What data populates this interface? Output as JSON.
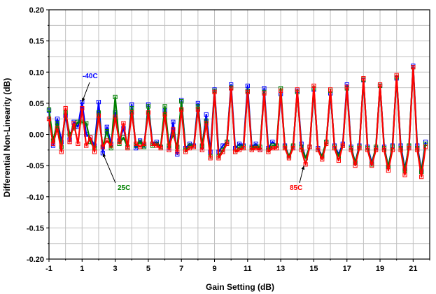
{
  "chart_data": {
    "type": "line",
    "title": "",
    "xlabel": "Gain Setting (dB)",
    "ylabel": "Differential Non-Linearity (dB)",
    "xlim": [
      -1,
      22
    ],
    "ylim": [
      -0.2,
      0.2
    ],
    "x_ticks": [
      "-1",
      "1",
      "3",
      "5",
      "7",
      "9",
      "11",
      "13",
      "15",
      "17",
      "19",
      "21"
    ],
    "y_ticks": [
      "-0.20",
      "-0.15",
      "-0.10",
      "-0.05",
      "0.00",
      "0.05",
      "0.10",
      "0.15",
      "0.20"
    ],
    "grid": true,
    "colors": {
      "-40C": "#0000ff",
      "25C": "#008000",
      "85C": "#ff0000"
    },
    "annotations": [
      {
        "text": "-40C",
        "color": "#0000ff"
      },
      {
        "text": "25C",
        "color": "#008000"
      },
      {
        "text": "85C",
        "color": "#ff0000"
      }
    ],
    "x": [
      -1,
      -0.75,
      -0.5,
      -0.25,
      0,
      0.25,
      0.5,
      0.75,
      1,
      1.25,
      1.5,
      1.75,
      2,
      2.25,
      2.5,
      2.75,
      3,
      3.25,
      3.5,
      3.75,
      4,
      4.25,
      4.5,
      4.75,
      5,
      5.25,
      5.5,
      5.75,
      6,
      6.25,
      6.5,
      6.75,
      7,
      7.25,
      7.5,
      7.75,
      8,
      8.25,
      8.5,
      8.75,
      9,
      9.25,
      9.5,
      9.75,
      10,
      10.25,
      10.5,
      10.75,
      11,
      11.25,
      11.5,
      11.75,
      12,
      12.25,
      12.5,
      12.75,
      13,
      13.25,
      13.5,
      13.75,
      14,
      14.25,
      14.5,
      14.75,
      15,
      15.25,
      15.5,
      15.75,
      16,
      16.25,
      16.5,
      16.75,
      17,
      17.25,
      17.5,
      17.75,
      18,
      18.25,
      18.5,
      18.75,
      19,
      19.25,
      19.5,
      19.75,
      20,
      20.25,
      20.5,
      20.75,
      21,
      21.25,
      21.5,
      21.75
    ],
    "series": [
      {
        "name": "-40C",
        "values": [
          0.038,
          -0.018,
          0.025,
          -0.012,
          0.03,
          -0.008,
          0.02,
          0.012,
          0.052,
          0.0,
          -0.005,
          -0.018,
          0.052,
          -0.03,
          0.012,
          -0.015,
          0.035,
          -0.01,
          0.01,
          -0.02,
          0.048,
          -0.022,
          -0.01,
          -0.018,
          0.048,
          -0.015,
          -0.012,
          -0.02,
          0.038,
          -0.022,
          0.02,
          -0.032,
          0.055,
          -0.022,
          -0.015,
          -0.018,
          0.05,
          -0.02,
          0.032,
          -0.028,
          0.072,
          -0.028,
          -0.018,
          -0.012,
          0.08,
          -0.022,
          -0.015,
          -0.018,
          0.078,
          -0.02,
          -0.015,
          -0.025,
          0.074,
          -0.022,
          -0.012,
          -0.018,
          0.065,
          -0.018,
          -0.035,
          -0.02,
          0.07,
          -0.015,
          -0.038,
          -0.02,
          0.072,
          -0.022,
          -0.035,
          -0.012,
          0.066,
          -0.018,
          -0.032,
          -0.015,
          0.08,
          -0.02,
          -0.045,
          -0.018,
          0.087,
          -0.02,
          -0.045,
          -0.022,
          0.078,
          -0.02,
          -0.052,
          -0.018,
          0.09,
          -0.018,
          -0.055,
          -0.02,
          0.11,
          -0.018,
          -0.058,
          -0.012
        ]
      },
      {
        "name": "25C",
        "values": [
          0.04,
          -0.01,
          0.018,
          -0.02,
          0.035,
          0.0,
          0.01,
          0.02,
          0.02,
          0.018,
          -0.012,
          -0.022,
          0.035,
          -0.02,
          0.005,
          -0.022,
          0.06,
          -0.015,
          -0.005,
          -0.02,
          0.042,
          -0.018,
          -0.012,
          -0.02,
          0.045,
          -0.018,
          -0.015,
          -0.02,
          0.045,
          -0.018,
          0.0,
          -0.02,
          0.053,
          -0.025,
          -0.018,
          -0.02,
          0.045,
          -0.018,
          0.022,
          -0.035,
          0.07,
          -0.035,
          -0.025,
          -0.012,
          0.075,
          -0.028,
          -0.02,
          -0.02,
          0.07,
          -0.022,
          -0.02,
          -0.02,
          0.068,
          -0.025,
          -0.018,
          -0.018,
          0.074,
          -0.02,
          -0.035,
          -0.018,
          0.068,
          -0.02,
          -0.038,
          -0.02,
          0.074,
          -0.025,
          -0.035,
          -0.012,
          0.07,
          -0.02,
          -0.035,
          -0.018,
          0.074,
          -0.022,
          -0.045,
          -0.02,
          0.088,
          -0.022,
          -0.048,
          -0.02,
          0.078,
          -0.022,
          -0.052,
          -0.02,
          0.092,
          -0.022,
          -0.058,
          -0.018,
          0.108,
          -0.022,
          -0.06,
          -0.015
        ]
      },
      {
        "name": "85C",
        "values": [
          0.025,
          -0.015,
          0.01,
          -0.028,
          0.042,
          -0.012,
          0.018,
          -0.015,
          0.042,
          -0.018,
          -0.005,
          -0.028,
          0.03,
          -0.02,
          -0.01,
          -0.018,
          0.028,
          -0.012,
          0.018,
          -0.022,
          0.035,
          -0.015,
          -0.02,
          -0.015,
          0.035,
          -0.015,
          -0.018,
          -0.022,
          0.032,
          -0.025,
          0.008,
          -0.028,
          0.04,
          -0.028,
          -0.022,
          -0.02,
          0.04,
          -0.025,
          0.018,
          -0.038,
          0.068,
          -0.038,
          -0.028,
          -0.015,
          0.074,
          -0.028,
          -0.025,
          -0.022,
          0.068,
          -0.025,
          -0.022,
          -0.025,
          0.066,
          -0.028,
          -0.022,
          -0.022,
          0.07,
          -0.022,
          -0.038,
          -0.022,
          0.072,
          -0.025,
          -0.048,
          -0.02,
          0.078,
          -0.025,
          -0.04,
          -0.015,
          0.072,
          -0.022,
          -0.042,
          -0.018,
          0.076,
          -0.025,
          -0.05,
          -0.022,
          0.09,
          -0.025,
          -0.05,
          -0.025,
          0.08,
          -0.025,
          -0.058,
          -0.025,
          0.095,
          -0.025,
          -0.065,
          -0.022,
          0.108,
          -0.025,
          -0.068,
          -0.02
        ]
      }
    ]
  }
}
